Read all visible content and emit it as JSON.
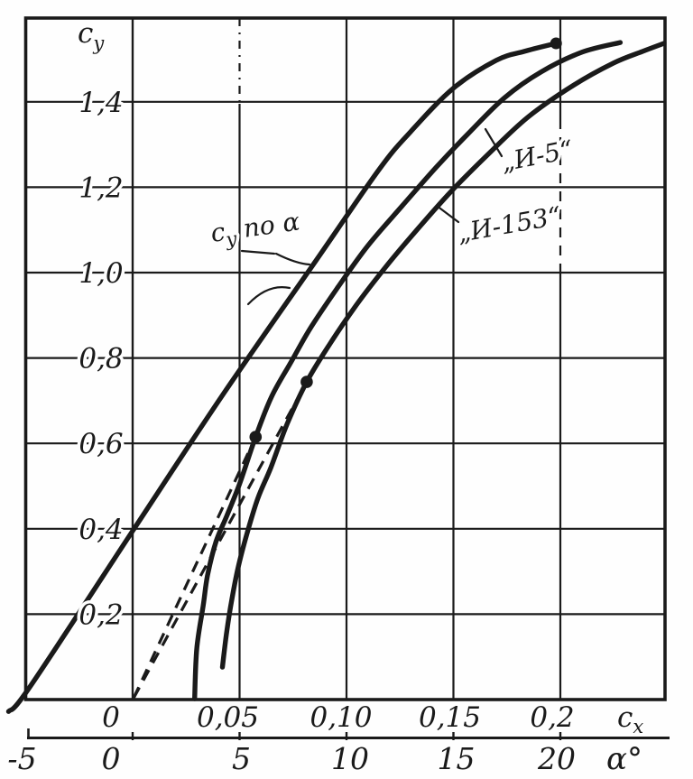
{
  "chart_data": {
    "type": "line",
    "title": "",
    "description_visible_text_only": "Polar curves c_y(c_x) for И-5 and И-153 and lift curve c_y по α",
    "grid": true,
    "y_axis": {
      "label_base": "c",
      "label_sub": "y",
      "ticks": [
        0.2,
        0.4,
        0.6,
        0.8,
        1.0,
        1.2,
        1.4
      ],
      "tick_labels": [
        "0,2",
        "0,4",
        "0,6",
        "0,8",
        "1,0",
        "1,2",
        "1,4"
      ],
      "range": [
        0,
        1.6
      ]
    },
    "x_axis_cx": {
      "label_base": "c",
      "label_sub": "x",
      "ticks": [
        0,
        0.05,
        0.1,
        0.15,
        0.2
      ],
      "tick_labels": [
        "0",
        "0,05",
        "0,10",
        "0,15",
        "0,2"
      ],
      "range": [
        -0.05,
        0.25
      ]
    },
    "x_axis_alpha": {
      "label": "α°",
      "ticks": [
        -5,
        0,
        5,
        10,
        15,
        20
      ],
      "tick_labels": [
        "-5",
        "0",
        "5",
        "10",
        "15",
        "20"
      ],
      "range": [
        -5,
        25
      ]
    },
    "series": [
      {
        "name": "c_y по α",
        "x_space": "alpha",
        "style": "solid",
        "end_dot": [
          19.8,
          1.537
        ],
        "points": [
          [
            -5.8,
            -0.028
          ],
          [
            -4.8,
            0.03
          ],
          [
            0,
            0.395
          ],
          [
            4.3,
            0.72
          ],
          [
            8.6,
            1.03
          ],
          [
            11.5,
            1.24
          ],
          [
            13.0,
            1.33
          ],
          [
            15.0,
            1.432
          ],
          [
            17.0,
            1.497
          ],
          [
            18.3,
            1.518
          ],
          [
            19.8,
            1.537
          ]
        ]
      },
      {
        "name": "И-5",
        "x_space": "cx",
        "style": "solid",
        "points": [
          [
            0.029,
            0.002
          ],
          [
            0.03,
            0.12
          ],
          [
            0.033,
            0.22
          ],
          [
            0.035,
            0.29
          ],
          [
            0.039,
            0.37
          ],
          [
            0.044,
            0.43
          ],
          [
            0.05,
            0.505
          ],
          [
            0.0575,
            0.615
          ],
          [
            0.065,
            0.71
          ],
          [
            0.074,
            0.79
          ],
          [
            0.0835,
            0.873
          ],
          [
            0.096,
            0.966
          ],
          [
            0.11,
            1.063
          ],
          [
            0.126,
            1.156
          ],
          [
            0.142,
            1.247
          ],
          [
            0.157,
            1.326
          ],
          [
            0.174,
            1.41
          ],
          [
            0.191,
            1.47
          ],
          [
            0.21,
            1.516
          ],
          [
            0.228,
            1.539
          ]
        ]
      },
      {
        "name": "И-153",
        "x_space": "cx",
        "style": "solid",
        "points": [
          [
            0.042,
            0.076
          ],
          [
            0.044,
            0.159
          ],
          [
            0.0464,
            0.235
          ],
          [
            0.0494,
            0.311
          ],
          [
            0.0536,
            0.391
          ],
          [
            0.0586,
            0.472
          ],
          [
            0.0646,
            0.543
          ],
          [
            0.0722,
            0.645
          ],
          [
            0.0814,
            0.744
          ],
          [
            0.092,
            0.831
          ],
          [
            0.1046,
            0.924
          ],
          [
            0.1186,
            1.015
          ],
          [
            0.1329,
            1.1
          ],
          [
            0.1489,
            1.19
          ],
          [
            0.1658,
            1.275
          ],
          [
            0.1848,
            1.364
          ],
          [
            0.2059,
            1.438
          ],
          [
            0.2249,
            1.491
          ],
          [
            0.2384,
            1.518
          ],
          [
            0.2485,
            1.537
          ]
        ]
      }
    ],
    "tangent_lines": [
      {
        "from": [
          0.0005,
          0.004
        ],
        "to": [
          0.0575,
          0.615
        ],
        "style": "dashed",
        "touches": "И-5"
      },
      {
        "from": [
          0.0005,
          0.004
        ],
        "to": [
          0.0814,
          0.744
        ],
        "style": "dashed",
        "touches": "И-153"
      }
    ],
    "markers": [
      {
        "series": "И-5",
        "cx": 0.0575,
        "cy": 0.615
      },
      {
        "series": "И-153",
        "cx": 0.0814,
        "cy": 0.744
      }
    ]
  },
  "labels": {
    "curve_alpha_base": "c",
    "curve_alpha_sub": "y",
    "curve_alpha_rest": " по α",
    "curve_i5": "„И-5“",
    "curve_i153": "„И-153“"
  }
}
